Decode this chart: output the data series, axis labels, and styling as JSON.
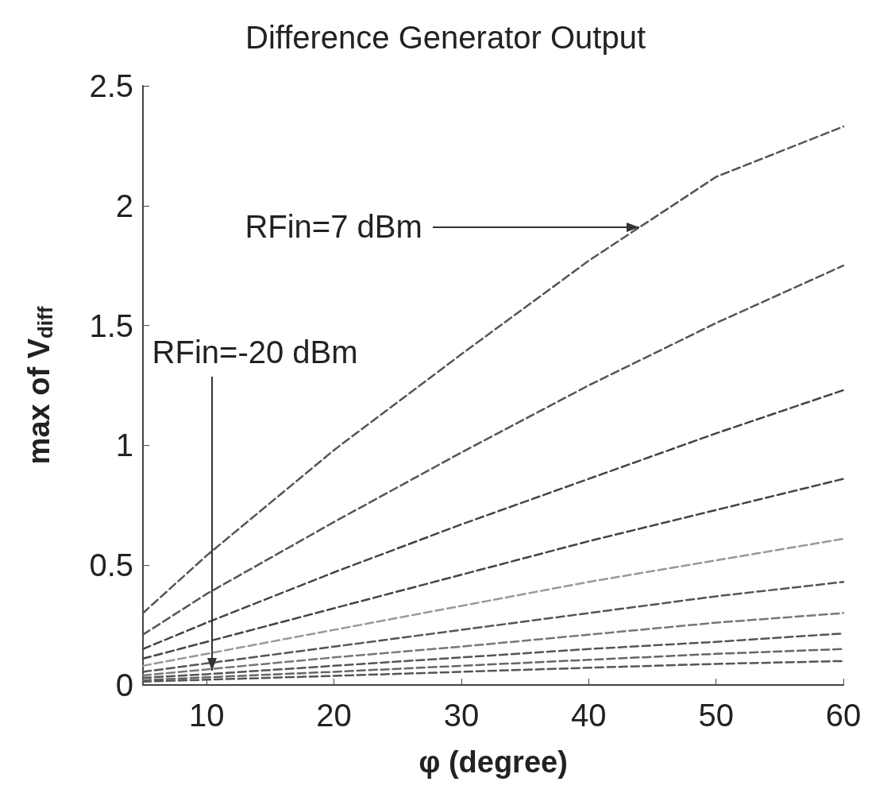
{
  "chart_data": {
    "type": "line",
    "title": "Difference Generator Output",
    "xlabel": "φ (degree)",
    "ylabel": "max of V$_{diff}$",
    "x": [
      5,
      10,
      20,
      30,
      40,
      50,
      60
    ],
    "series": [
      {
        "color": "#555555",
        "values": [
          0.3,
          0.54,
          0.98,
          1.38,
          1.77,
          2.12,
          2.33
        ]
      },
      {
        "color": "#555555",
        "values": [
          0.21,
          0.38,
          0.68,
          0.97,
          1.25,
          1.51,
          1.75
        ]
      },
      {
        "color": "#444444",
        "values": [
          0.15,
          0.26,
          0.47,
          0.67,
          0.86,
          1.05,
          1.23
        ]
      },
      {
        "color": "#444444",
        "values": [
          0.11,
          0.18,
          0.32,
          0.46,
          0.6,
          0.73,
          0.86
        ]
      },
      {
        "color": "#999999",
        "values": [
          0.08,
          0.13,
          0.23,
          0.33,
          0.43,
          0.52,
          0.61
        ]
      },
      {
        "color": "#555555",
        "values": [
          0.055,
          0.09,
          0.16,
          0.23,
          0.3,
          0.37,
          0.43
        ]
      },
      {
        "color": "#777777",
        "values": [
          0.04,
          0.065,
          0.115,
          0.16,
          0.21,
          0.26,
          0.3
        ]
      },
      {
        "color": "#555555",
        "values": [
          0.03,
          0.045,
          0.08,
          0.115,
          0.15,
          0.18,
          0.215
        ]
      },
      {
        "color": "#666666",
        "values": [
          0.02,
          0.032,
          0.055,
          0.08,
          0.105,
          0.13,
          0.15
        ]
      },
      {
        "color": "#555555",
        "values": [
          0.014,
          0.022,
          0.038,
          0.055,
          0.072,
          0.088,
          0.1
        ]
      }
    ],
    "annotations": [
      {
        "text": "RFin=7 dBm",
        "x": 44,
        "y": 1.91
      },
      {
        "text": "RFin=-20 dBm",
        "x": 10.4,
        "y": 0.06
      }
    ],
    "xlim": [
      5,
      60
    ],
    "xticks": [
      10,
      20,
      30,
      40,
      50,
      60
    ],
    "ylim": [
      0,
      2.5
    ],
    "yticks": [
      0,
      0.5,
      1,
      1.5,
      2,
      2.5
    ],
    "grid": false,
    "marker": "none",
    "line_style": "dashed"
  }
}
